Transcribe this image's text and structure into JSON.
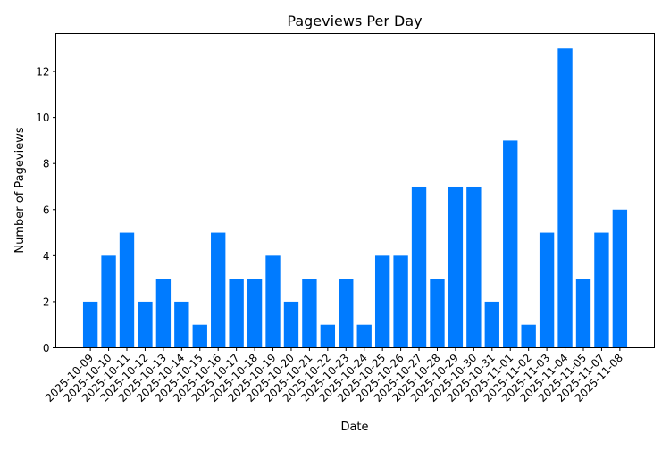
{
  "chart_data": {
    "type": "bar",
    "title": "Pageviews Per Day",
    "xlabel": "Date",
    "ylabel": "Number of Pageviews",
    "categories": [
      "2025-10-09",
      "2025-10-10",
      "2025-10-11",
      "2025-10-12",
      "2025-10-13",
      "2025-10-14",
      "2025-10-15",
      "2025-10-16",
      "2025-10-17",
      "2025-10-18",
      "2025-10-19",
      "2025-10-20",
      "2025-10-21",
      "2025-10-22",
      "2025-10-23",
      "2025-10-24",
      "2025-10-25",
      "2025-10-26",
      "2025-10-27",
      "2025-10-28",
      "2025-10-29",
      "2025-10-30",
      "2025-10-31",
      "2025-11-01",
      "2025-11-02",
      "2025-11-03",
      "2025-11-04",
      "2025-11-05",
      "2025-11-07",
      "2025-11-08"
    ],
    "values": [
      2,
      4,
      5,
      2,
      3,
      2,
      1,
      5,
      3,
      3,
      4,
      2,
      3,
      1,
      3,
      1,
      4,
      4,
      7,
      3,
      7,
      7,
      2,
      9,
      1,
      5,
      13,
      3,
      5,
      6
    ],
    "ylim": [
      0,
      13.65
    ],
    "yticks": [
      0,
      2,
      4,
      6,
      8,
      10,
      12
    ],
    "grid": false,
    "bar_color": "#007bff"
  }
}
